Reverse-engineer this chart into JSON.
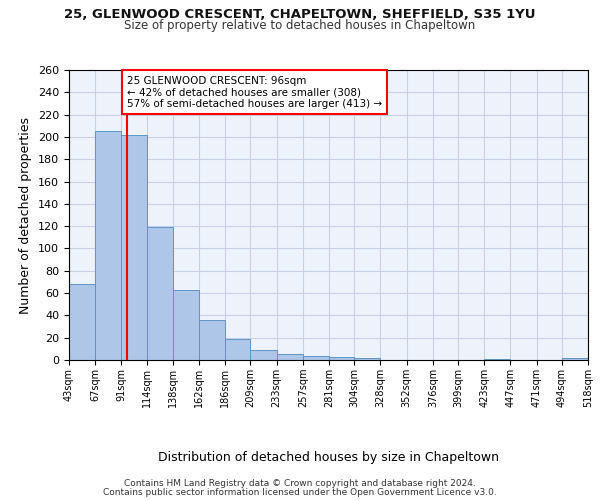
{
  "title1": "25, GLENWOOD CRESCENT, CHAPELTOWN, SHEFFIELD, S35 1YU",
  "title2": "Size of property relative to detached houses in Chapeltown",
  "xlabel": "Distribution of detached houses by size in Chapeltown",
  "ylabel": "Number of detached properties",
  "footer1": "Contains HM Land Registry data © Crown copyright and database right 2024.",
  "footer2": "Contains public sector information licensed under the Open Government Licence v3.0.",
  "annotation_line1": "25 GLENWOOD CRESCENT: 96sqm",
  "annotation_line2": "← 42% of detached houses are smaller (308)",
  "annotation_line3": "57% of semi-detached houses are larger (413) →",
  "bar_color": "#aec6e8",
  "bar_edge_color": "#5a96c8",
  "redline_x": 96,
  "bin_edges": [
    43,
    67,
    91,
    114,
    138,
    162,
    186,
    209,
    233,
    257,
    281,
    304,
    328,
    352,
    376,
    399,
    423,
    447,
    471,
    494,
    518
  ],
  "bar_heights": [
    68,
    205,
    202,
    119,
    63,
    36,
    19,
    9,
    5,
    4,
    3,
    2,
    0,
    0,
    0,
    0,
    1,
    0,
    0,
    2
  ],
  "tick_labels": [
    "43sqm",
    "67sqm",
    "91sqm",
    "114sqm",
    "138sqm",
    "162sqm",
    "186sqm",
    "209sqm",
    "233sqm",
    "257sqm",
    "281sqm",
    "304sqm",
    "328sqm",
    "352sqm",
    "376sqm",
    "399sqm",
    "423sqm",
    "447sqm",
    "471sqm",
    "494sqm",
    "518sqm"
  ],
  "ylim": [
    0,
    260
  ],
  "yticks": [
    0,
    20,
    40,
    60,
    80,
    100,
    120,
    140,
    160,
    180,
    200,
    220,
    240,
    260
  ],
  "background_color": "#eef2fb",
  "grid_color": "#c8d0e8"
}
